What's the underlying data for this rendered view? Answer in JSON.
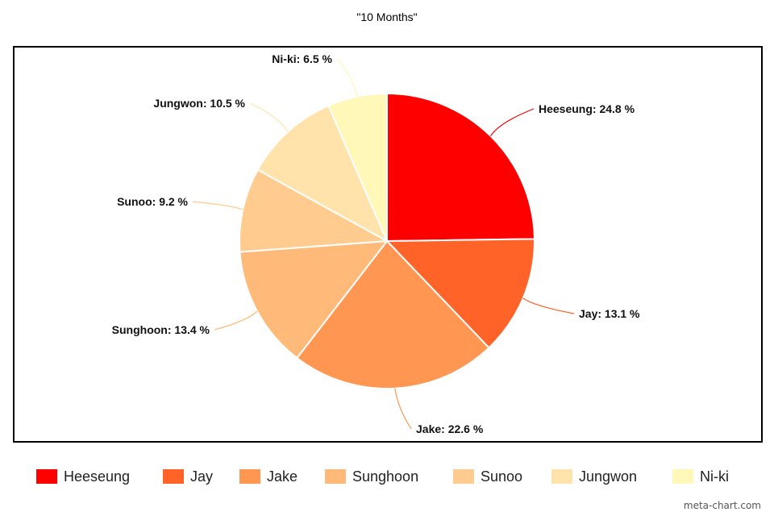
{
  "chart_data": {
    "type": "pie",
    "title": "\"10 Months\"",
    "categories": [
      "Heeseung",
      "Jay",
      "Jake",
      "Sunghoon",
      "Sunoo",
      "Jungwon",
      "Ni-ki"
    ],
    "values": [
      24.8,
      13.1,
      22.6,
      13.4,
      9.2,
      10.5,
      6.5
    ],
    "unit": "%",
    "data_labels": [
      "Heeseung: 24.8 %",
      "Jay: 13.1 %",
      "Jake: 22.6 %",
      "Sunghoon: 13.4 %",
      "Sunoo: 9.2 %",
      "Jungwon: 10.5 %",
      "Ni-ki: 6.5 %"
    ],
    "colors": [
      "#fe0000",
      "#ff6328",
      "#ff9752",
      "#ffb978",
      "#ffcb8e",
      "#ffe3aa",
      "#fff8b8"
    ],
    "legend_position": "bottom"
  },
  "legend": {
    "items": [
      {
        "label": "Heeseung",
        "color": "#fe0000"
      },
      {
        "label": "Jay",
        "color": "#ff6328"
      },
      {
        "label": "Jake",
        "color": "#ff9752"
      },
      {
        "label": "Sunghoon",
        "color": "#ffb978"
      },
      {
        "label": "Sunoo",
        "color": "#ffcb8e"
      },
      {
        "label": "Jungwon",
        "color": "#ffe3aa"
      },
      {
        "label": "Ni-ki",
        "color": "#fff8b8"
      }
    ]
  },
  "watermark": "meta-chart.com"
}
